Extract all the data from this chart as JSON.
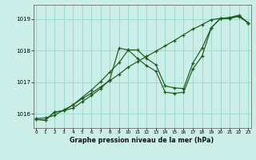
{
  "xlabel": "Graphe pression niveau de la mer (hPa)",
  "background_color": "#cceee8",
  "grid_color": "#99ddcc",
  "line_color": "#1a5c1a",
  "x_ticks": [
    0,
    1,
    2,
    3,
    4,
    5,
    6,
    7,
    8,
    9,
    10,
    11,
    12,
    13,
    14,
    15,
    16,
    17,
    18,
    19,
    20,
    21,
    22,
    23
  ],
  "y_ticks": [
    1016,
    1017,
    1018,
    1019
  ],
  "ylim": [
    1015.55,
    1019.45
  ],
  "xlim": [
    -0.3,
    23.3
  ],
  "series1": [
    1015.85,
    1015.87,
    1015.95,
    1016.12,
    1016.28,
    1016.48,
    1016.65,
    1016.85,
    1017.05,
    1017.25,
    1017.48,
    1017.65,
    1017.82,
    1017.98,
    1018.15,
    1018.32,
    1018.5,
    1018.68,
    1018.82,
    1018.98,
    1019.02,
    1019.05,
    1019.12,
    1018.88
  ],
  "series2": [
    1015.82,
    1015.8,
    1016.05,
    1016.1,
    1016.18,
    1016.38,
    1016.58,
    1016.8,
    1017.08,
    1018.08,
    1018.02,
    1018.02,
    1017.75,
    1017.55,
    1016.88,
    1016.82,
    1016.8,
    1017.6,
    1018.08,
    1018.72,
    1019.02,
    1019.02,
    1019.08,
    1018.88
  ],
  "series3": [
    1015.82,
    1015.8,
    1016.05,
    1016.1,
    1016.28,
    1016.52,
    1016.75,
    1017.02,
    1017.32,
    1017.62,
    1018.02,
    1017.75,
    1017.52,
    1017.35,
    1016.68,
    1016.65,
    1016.68,
    1017.42,
    1017.82,
    1018.72,
    1019.02,
    1019.02,
    1019.1,
    1018.88
  ]
}
